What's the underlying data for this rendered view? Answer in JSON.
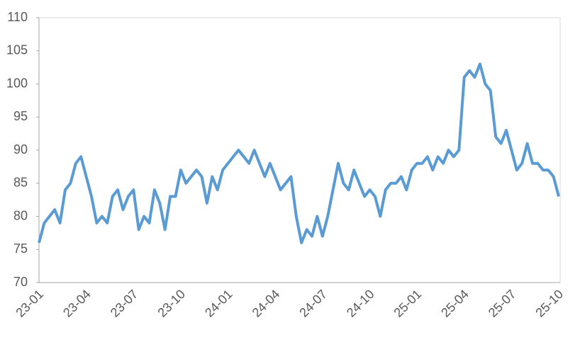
{
  "chart_data": {
    "type": "line",
    "categories": [
      "23-01",
      null,
      null,
      null,
      null,
      null,
      null,
      null,
      null,
      "23-04",
      null,
      null,
      null,
      null,
      null,
      null,
      null,
      null,
      "23-07",
      null,
      null,
      null,
      null,
      null,
      null,
      null,
      null,
      "23-10",
      null,
      null,
      null,
      null,
      null,
      null,
      null,
      null,
      "24-01",
      null,
      null,
      null,
      null,
      null,
      null,
      null,
      null,
      "24-04",
      null,
      null,
      null,
      null,
      null,
      null,
      null,
      null,
      "24-07",
      null,
      null,
      null,
      null,
      null,
      null,
      null,
      null,
      "24-10",
      null,
      null,
      null,
      null,
      null,
      null,
      null,
      null,
      "25-01",
      null,
      null,
      null,
      null,
      null,
      null,
      null,
      null,
      "25-04",
      null,
      null,
      null,
      null,
      null,
      null,
      null,
      null,
      "25-07",
      null,
      null,
      null,
      null,
      null,
      null,
      null,
      null,
      "25-10"
    ],
    "series": [
      {
        "color": "#5b9bd5",
        "values": [
          76,
          79,
          80,
          81,
          79,
          84,
          85,
          88,
          89,
          86,
          83,
          79,
          80,
          79,
          83,
          84,
          81,
          83,
          84,
          78,
          80,
          79,
          84,
          82,
          78,
          83,
          83,
          87,
          85,
          86,
          87,
          86,
          82,
          86,
          84,
          87,
          88,
          89,
          90,
          89,
          88,
          90,
          88,
          86,
          88,
          86,
          84,
          85,
          86,
          80,
          76,
          78,
          77,
          80,
          77,
          80,
          84,
          88,
          85,
          84,
          87,
          85,
          83,
          84,
          83,
          80,
          84,
          85,
          85,
          86,
          84,
          87,
          88,
          88,
          89,
          87,
          89,
          88,
          90,
          89,
          90,
          101,
          102,
          101,
          103,
          100,
          99,
          92,
          91,
          93,
          90,
          87,
          88,
          91,
          88,
          88,
          87,
          87,
          86,
          83
        ]
      }
    ],
    "ylim": [
      70,
      110
    ],
    "yticks": [
      70,
      75,
      80,
      85,
      90,
      95,
      100,
      105,
      110
    ]
  }
}
